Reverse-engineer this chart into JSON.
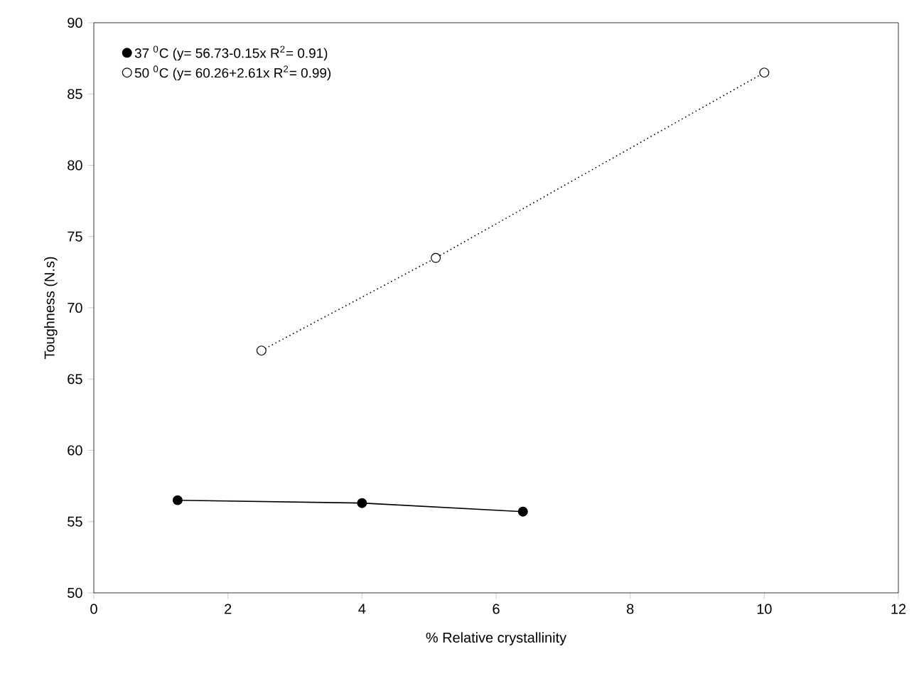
{
  "chart_data": {
    "type": "scatter",
    "xlabel": "% Relative crystallinity",
    "ylabel": "Toughness (N.s)",
    "series": [
      {
        "name": "37 $^{0}$C (y= 56.73-0.15x R$^{2}$= 0.91)",
        "color": "#000000",
        "x": [
          1.25,
          4.0,
          6.4
        ],
        "values": [
          56.5,
          56.3,
          55.7
        ],
        "marker": "circle"
      },
      {
        "name": "50 $^{0}$C (y= 60.26+2.61x R$^{2}$= 0.99)",
        "color": "#ffffff",
        "x": [
          2.5,
          5.1,
          10.0
        ],
        "values": [
          67.0,
          73.5,
          86.5
        ],
        "marker": "circle"
      },
      {
        "type": "line",
        "color": "#000000",
        "x": [
          1.25,
          4.0,
          6.4
        ],
        "values": [
          56.5,
          56.3,
          55.7
        ],
        "line_style": "solid",
        "marker": "none"
      },
      {
        "type": "line",
        "color": "#000000",
        "x": [
          2.5,
          5.1,
          10.0
        ],
        "values": [
          67.0,
          73.5,
          86.5
        ],
        "line_style": "dotted",
        "marker": "none"
      }
    ],
    "xlim": [
      0,
      12
    ],
    "xticks": [
      0,
      2,
      4,
      6,
      8,
      10,
      12
    ],
    "ylim": [
      50,
      90
    ],
    "yticks": [
      50,
      55,
      60,
      65,
      70,
      75,
      80,
      85,
      90
    ],
    "grid": false,
    "legend": "top left"
  }
}
